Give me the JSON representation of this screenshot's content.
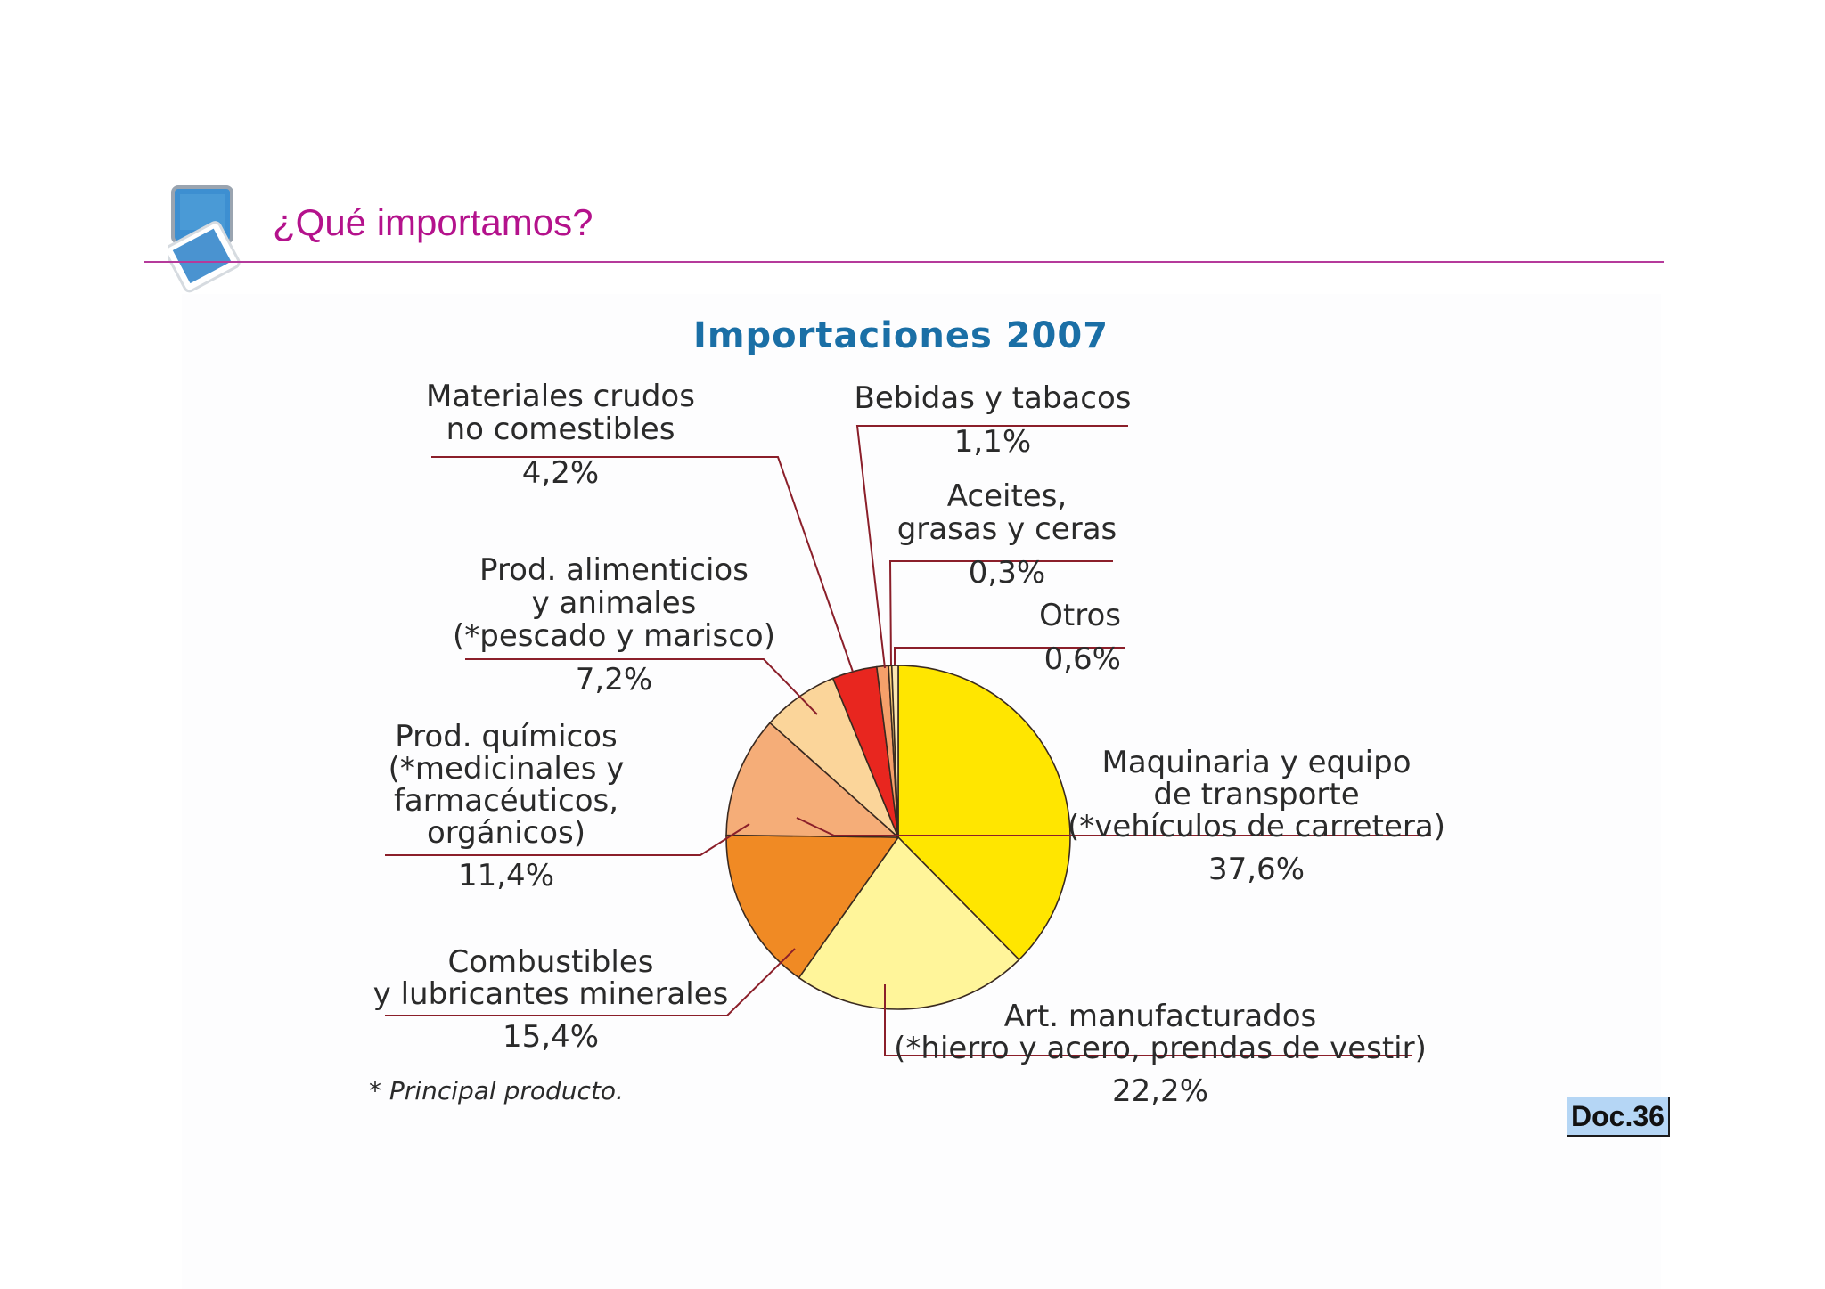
{
  "header": {
    "title": "¿Qué importamos?",
    "icon": "monitor-icon"
  },
  "colors": {
    "title": "#b4128c",
    "rule": "#b53a9b",
    "chart_title": "#1a6fa6",
    "leader_line": "#8b1f2a",
    "badge_bg": "#b5d6f5"
  },
  "chart_data": {
    "type": "pie",
    "title": "Importaciones 2007",
    "unit": "%",
    "start": "top",
    "direction": "clockwise",
    "slices": [
      {
        "label_lines": [
          "Maquinaria y equipo",
          "de transporte",
          "(*vehículos de carretera)"
        ],
        "value": 37.6,
        "value_label": "37,6%",
        "color": "#ffe600"
      },
      {
        "label_lines": [
          "Art. manufacturados",
          "(*hierro y acero, prendas de vestir)"
        ],
        "value": 22.2,
        "value_label": "22,2%",
        "color": "#fff59a"
      },
      {
        "label_lines": [
          "Combustibles",
          "y lubricantes minerales"
        ],
        "value": 15.4,
        "value_label": "15,4%",
        "color": "#f08a24"
      },
      {
        "label_lines": [
          "Prod. químicos",
          "(*medicinales y",
          "farmacéuticos,",
          "orgánicos)"
        ],
        "value": 11.4,
        "value_label": "11,4%",
        "color": "#f5ad78"
      },
      {
        "label_lines": [
          "Prod. alimenticios",
          "y animales",
          "(*pescado y marisco)"
        ],
        "value": 7.2,
        "value_label": "7,2%",
        "color": "#fbd59a"
      },
      {
        "label_lines": [
          "Materiales crudos",
          "no comestibles"
        ],
        "value": 4.2,
        "value_label": "4,2%",
        "color": "#e8261f"
      },
      {
        "label_lines": [
          "Bebidas y tabacos"
        ],
        "value": 1.1,
        "value_label": "1,1%",
        "color": "#f5a06a"
      },
      {
        "label_lines": [
          "Aceites,",
          "grasas y ceras"
        ],
        "value": 0.3,
        "value_label": "0,3%",
        "color": "#ffd27a"
      },
      {
        "label_lines": [
          "Otros"
        ],
        "value": 0.6,
        "value_label": "0,6%",
        "color": "#fbe6b0"
      }
    ],
    "footnote": "* Principal producto."
  },
  "badge": {
    "label": "Doc.36"
  }
}
